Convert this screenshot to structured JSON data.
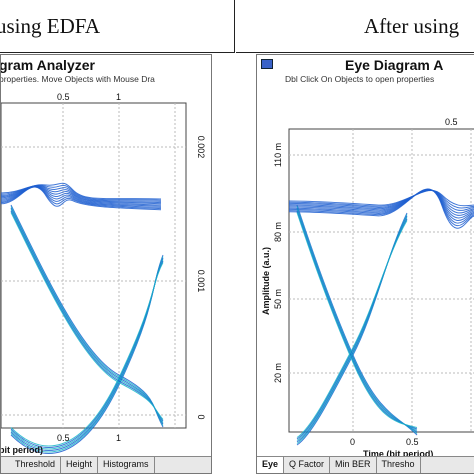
{
  "header": {
    "left_title": "using EDFA",
    "right_title": "After using"
  },
  "left_panel": {
    "window_title": "gram Analyzer",
    "hint": "properties.  Move Objects with Mouse Dra",
    "top_ticks": [
      "0.5",
      "1"
    ],
    "bottom_ticks": [
      "0.5",
      "1"
    ],
    "right_ticks": [
      "0.002",
      "0.001",
      "0"
    ],
    "xlabel": "bit period)",
    "tabs": [
      "Threshold",
      "Height",
      "Histograms"
    ]
  },
  "right_panel": {
    "window_title": "Eye Diagram A",
    "hint": "Dbl Click On Objects to open properties",
    "top_ticks": [
      "0.5"
    ],
    "bottom_ticks": [
      "0",
      "0.5"
    ],
    "left_ticks": [
      "110 m",
      "80 m",
      "50 m",
      "20 m"
    ],
    "ylabel": "Amplitude (a.u.)",
    "xlabel": "Time (bit period)",
    "tabs": [
      "Eye",
      "Q Factor",
      "Min BER",
      "Thresho"
    ]
  },
  "colors": {
    "trace_blue": "#1f5fd0",
    "trace_cyan": "#19b7c9",
    "trace_green": "#7ed321",
    "grid": "#bbbbbb"
  }
}
